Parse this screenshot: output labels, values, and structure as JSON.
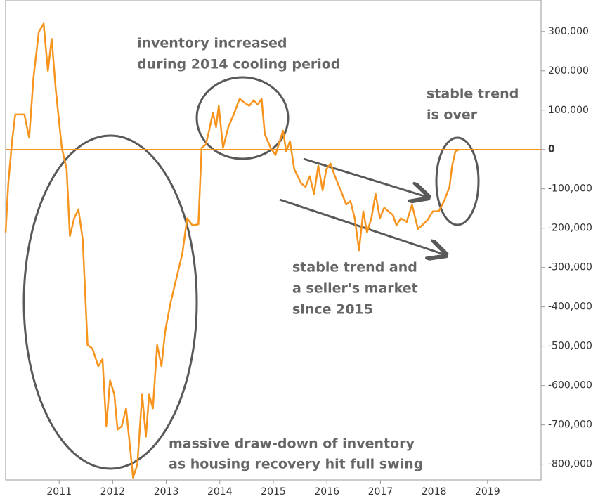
{
  "chart_data": {
    "type": "line",
    "x": [
      2010.0,
      2010.05,
      2010.12,
      2010.18,
      2010.35,
      2010.44,
      2010.52,
      2010.62,
      2010.71,
      2010.79,
      2010.86,
      2010.94,
      2011.05,
      2011.14,
      2011.2,
      2011.28,
      2011.36,
      2011.44,
      2011.53,
      2011.62,
      2011.73,
      2011.81,
      2011.88,
      2011.95,
      2012.03,
      2012.09,
      2012.17,
      2012.25,
      2012.33,
      2012.38,
      2012.46,
      2012.55,
      2012.62,
      2012.68,
      2012.75,
      2012.83,
      2012.91,
      2012.98,
      2013.08,
      2013.19,
      2013.3,
      2013.39,
      2013.49,
      2013.6,
      2013.66,
      2013.74,
      2013.8,
      2013.87,
      2013.93,
      2013.98,
      2014.06,
      2014.16,
      2014.27,
      2014.37,
      2014.45,
      2014.55,
      2014.63,
      2014.71,
      2014.78,
      2014.84,
      2014.95,
      2015.04,
      2015.1,
      2015.18,
      2015.24,
      2015.31,
      2015.39,
      2015.52,
      2015.6,
      2015.68,
      2015.76,
      2015.84,
      2015.92,
      2015.99,
      2016.07,
      2016.15,
      2016.26,
      2016.36,
      2016.44,
      2016.52,
      2016.6,
      2016.68,
      2016.75,
      2016.83,
      2016.91,
      2016.99,
      2017.07,
      2017.15,
      2017.23,
      2017.3,
      2017.38,
      2017.49,
      2017.59,
      2017.7,
      2017.8,
      2017.88,
      2017.98,
      2018.09,
      2018.19,
      2018.29,
      2018.34,
      2018.4,
      2018.47
    ],
    "series": [
      {
        "color": "#f7941d",
        "values": [
          -211000,
          -86000,
          21000,
          89000,
          89000,
          30000,
          182000,
          299000,
          320000,
          200000,
          281000,
          147000,
          4000,
          -50000,
          -220000,
          -175000,
          -152000,
          -229000,
          -497000,
          -506000,
          -551000,
          -533000,
          -703000,
          -587000,
          -623000,
          -712000,
          -703000,
          -658000,
          -766000,
          -834000,
          -801000,
          -623000,
          -730000,
          -623000,
          -658000,
          -497000,
          -551000,
          -462000,
          -390000,
          -327000,
          -265000,
          -175000,
          -193000,
          -190000,
          4000,
          13000,
          48000,
          93000,
          57000,
          111000,
          4000,
          57000,
          93000,
          129000,
          120000,
          111000,
          125000,
          114000,
          129000,
          39000,
          4000,
          -14000,
          13000,
          48000,
          -5000,
          21000,
          -50000,
          -86000,
          -95000,
          -68000,
          -113000,
          -41000,
          -104000,
          -50000,
          -36000,
          -68000,
          -104000,
          -140000,
          -131000,
          -175000,
          -256000,
          -157000,
          -211000,
          -175000,
          -113000,
          -175000,
          -148000,
          -157000,
          -166000,
          -193000,
          -175000,
          -184000,
          -140000,
          -202000,
          -190000,
          -179000,
          -157000,
          -157000,
          -131000,
          -95000,
          -41000,
          -5000,
          0
        ]
      }
    ],
    "xlim": [
      2010.0,
      2020.0
    ],
    "xticks": [
      2011,
      2012,
      2013,
      2014,
      2015,
      2016,
      2017,
      2018,
      2019
    ],
    "ylim": [
      -840000,
      380000
    ],
    "yticks": [
      {
        "value": 300000,
        "label": "300,000"
      },
      {
        "value": 200000,
        "label": "200,000"
      },
      {
        "value": 100000,
        "label": "100,000"
      },
      0,
      {
        "value": -100000,
        "label": "-100,000"
      },
      {
        "value": -200000,
        "label": "-200,000"
      },
      {
        "value": -300000,
        "label": "-300,000"
      },
      {
        "value": -400000,
        "label": "-400,000"
      },
      {
        "value": -500000,
        "label": "-500,000"
      },
      {
        "value": -600000,
        "label": "-600,000"
      },
      {
        "value": -700000,
        "label": "-700,000"
      },
      {
        "value": -800000,
        "label": "-800,000"
      }
    ],
    "zero_line": true,
    "annotations": [
      [
        "inventory increased",
        "during 2014 cooling period"
      ],
      [
        "stable trend",
        "is over"
      ],
      [
        "stable trend and",
        "a seller's market",
        "since 2015"
      ],
      [
        "massive draw-down of inventory",
        "as housing recovery hit full swing"
      ]
    ]
  }
}
